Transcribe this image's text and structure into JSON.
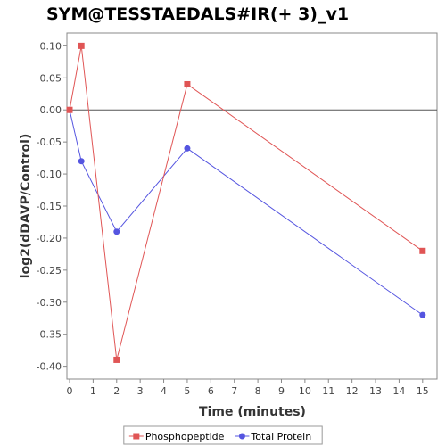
{
  "chart_data": {
    "type": "line",
    "title": "SYM@TESSTAEDALS#IR(+ 3)_v1",
    "xlabel": "Time (minutes)",
    "ylabel": "log2(dDAVP/Control)",
    "xlim": [
      0,
      15.5
    ],
    "ylim": [
      -0.42,
      0.12
    ],
    "xticks": [
      0,
      1,
      2,
      3,
      4,
      5,
      6,
      7,
      8,
      9,
      10,
      11,
      12,
      13,
      14,
      15
    ],
    "yticks": [
      0.1,
      0.05,
      0.0,
      -0.05,
      -0.1,
      -0.15,
      -0.2,
      -0.25,
      -0.3,
      -0.35,
      -0.4
    ],
    "ytick_labels": [
      "0.10",
      "0.05",
      "0.00",
      "-0.05",
      "-0.10",
      "-0.15",
      "-0.20",
      "-0.25",
      "-0.30",
      "-0.35",
      "-0.40"
    ],
    "zero_line": true,
    "grid": false,
    "legend_position": "bottom",
    "series": [
      {
        "name": "Phosphopeptide",
        "color": "#e05555",
        "marker": "square",
        "x": [
          0,
          0.5,
          2,
          5,
          15
        ],
        "y": [
          0.0,
          0.1,
          -0.39,
          0.04,
          -0.22
        ]
      },
      {
        "name": "Total Protein",
        "color": "#5555e0",
        "marker": "circle",
        "x": [
          0,
          0.5,
          2,
          5,
          15
        ],
        "y": [
          0.0,
          -0.08,
          -0.19,
          -0.06,
          -0.32
        ]
      }
    ]
  }
}
